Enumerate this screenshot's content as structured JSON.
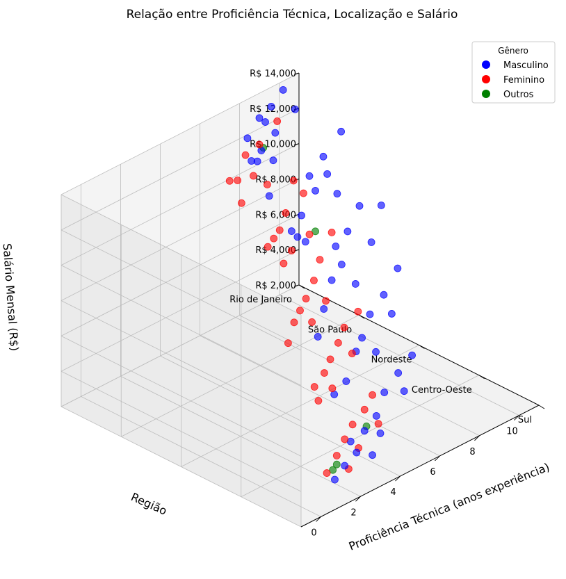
{
  "chart_data": {
    "type": "scatter",
    "title": "Relação entre Proficiência Técnica, Localização e Salário",
    "xlabel": "Proficiência Técnica (anos experiência)",
    "ylabel": "Região",
    "zlabel": "Salário Mensal (R$)",
    "x_ticks": [
      "0",
      "2",
      "4",
      "6",
      "8",
      "10"
    ],
    "y_categories": [
      "Rio de Janeiro",
      "São Paulo",
      "Nordeste",
      "Centro-Oeste",
      "Sul"
    ],
    "z_ticks": [
      "R$ 2,000",
      "R$ 4,000",
      "R$ 6,000",
      "R$ 8,000",
      "R$ 10,000",
      "R$ 12,000",
      "R$ 14,000"
    ],
    "xlim": [
      -1,
      11
    ],
    "zlim": [
      2000,
      14000
    ],
    "grid": true,
    "legend": {
      "title": "Gênero",
      "position": "top-right"
    },
    "series": [
      {
        "name": "Masculino",
        "color": "#0000ff",
        "points": [
          [
            10.2,
            0,
            13500
          ],
          [
            9.6,
            0,
            12900
          ],
          [
            9.0,
            0,
            12600
          ],
          [
            9.3,
            0,
            12200
          ],
          [
            8.4,
            0,
            11800
          ],
          [
            9.8,
            0,
            11300
          ],
          [
            9.1,
            0,
            10700
          ],
          [
            8.6,
            0,
            10400
          ],
          [
            9.7,
            0,
            9800
          ],
          [
            8.9,
            0,
            10200
          ],
          [
            9.5,
            0,
            7900
          ],
          [
            10.5,
            0.1,
            12400
          ],
          [
            10.1,
            1,
            12900
          ],
          [
            9.2,
            1,
            12000
          ],
          [
            8.5,
            1,
            11300
          ],
          [
            9.4,
            1,
            10900
          ],
          [
            8.8,
            1,
            10300
          ],
          [
            9.9,
            1,
            9500
          ],
          [
            8.1,
            1,
            9300
          ],
          [
            7.6,
            1,
            8700
          ],
          [
            8.3,
            1,
            7700
          ],
          [
            7.9,
            1,
            8200
          ],
          [
            8.0,
            2,
            11600
          ],
          [
            9.1,
            2,
            11000
          ],
          [
            7.4,
            2,
            10500
          ],
          [
            6.8,
            2,
            10000
          ],
          [
            8.6,
            2,
            9200
          ],
          [
            7.1,
            2,
            8800
          ],
          [
            6.6,
            2,
            8200
          ],
          [
            7.8,
            2,
            7300
          ],
          [
            6.2,
            2,
            6800
          ],
          [
            5.9,
            2,
            5400
          ],
          [
            6.9,
            3,
            10400
          ],
          [
            6.2,
            3,
            9300
          ],
          [
            5.5,
            3,
            8600
          ],
          [
            6.6,
            3,
            8000
          ],
          [
            5.1,
            3,
            7500
          ],
          [
            4.8,
            3,
            6900
          ],
          [
            5.8,
            3,
            6300
          ],
          [
            4.3,
            3,
            5500
          ],
          [
            3.7,
            3,
            5100
          ],
          [
            4.6,
            4,
            8500
          ],
          [
            3.9,
            4,
            7900
          ],
          [
            3.2,
            4,
            7200
          ],
          [
            4.2,
            4,
            6700
          ],
          [
            2.8,
            4,
            6100
          ],
          [
            2.2,
            4,
            5600
          ],
          [
            3.0,
            4,
            5000
          ],
          [
            1.8,
            4,
            4600
          ],
          [
            1.2,
            4,
            4200
          ],
          [
            0.7,
            4,
            3700
          ],
          [
            2.6,
            4,
            4000
          ],
          [
            1.5,
            4,
            5400
          ]
        ]
      },
      {
        "name": "Feminino",
        "color": "#ff0000",
        "points": [
          [
            8.3,
            0,
            10900
          ],
          [
            9.0,
            0,
            11100
          ],
          [
            8.7,
            0,
            9500
          ],
          [
            7.9,
            0,
            9700
          ],
          [
            9.4,
            0,
            8600
          ],
          [
            8.1,
            0,
            8300
          ],
          [
            7.5,
            0,
            9900
          ],
          [
            9.9,
            0,
            11900
          ],
          [
            7.7,
            1,
            11500
          ],
          [
            8.2,
            1,
            10500
          ],
          [
            7.3,
            1,
            9900
          ],
          [
            7.0,
            1,
            9100
          ],
          [
            6.7,
            1,
            8800
          ],
          [
            7.6,
            1,
            7600
          ],
          [
            8.5,
            1,
            8000
          ],
          [
            6.4,
            1,
            8500
          ],
          [
            7.2,
            1,
            7100
          ],
          [
            6.6,
            2,
            10900
          ],
          [
            6.0,
            2,
            9700
          ],
          [
            5.7,
            2,
            8700
          ],
          [
            5.3,
            2,
            7900
          ],
          [
            5.0,
            2,
            7400
          ],
          [
            4.7,
            2,
            6900
          ],
          [
            6.3,
            2,
            7200
          ],
          [
            5.6,
            2,
            6400
          ],
          [
            4.4,
            2,
            5900
          ],
          [
            4.9,
            3,
            9100
          ],
          [
            4.2,
            3,
            8600
          ],
          [
            3.9,
            3,
            7900
          ],
          [
            3.5,
            3,
            7200
          ],
          [
            3.2,
            3,
            6600
          ],
          [
            2.7,
            3,
            6100
          ],
          [
            4.6,
            3,
            6900
          ],
          [
            2.9,
            3,
            5200
          ],
          [
            3.6,
            3,
            5500
          ],
          [
            2.6,
            4,
            7400
          ],
          [
            2.2,
            4,
            6800
          ],
          [
            1.6,
            4,
            6300
          ],
          [
            1.2,
            4,
            5700
          ],
          [
            0.8,
            4,
            5000
          ],
          [
            0.3,
            4,
            4300
          ],
          [
            1.9,
            4,
            4800
          ],
          [
            2.9,
            4,
            5600
          ],
          [
            1.4,
            4,
            3900
          ]
        ]
      },
      {
        "name": "Outros",
        "color": "#008000",
        "points": [
          [
            9.2,
            0,
            10800
          ],
          [
            8.8,
            1,
            8000
          ],
          [
            2.3,
            4,
            5800
          ],
          [
            0.6,
            4,
            4300
          ],
          [
            0.8,
            4,
            4500
          ]
        ]
      }
    ]
  }
}
